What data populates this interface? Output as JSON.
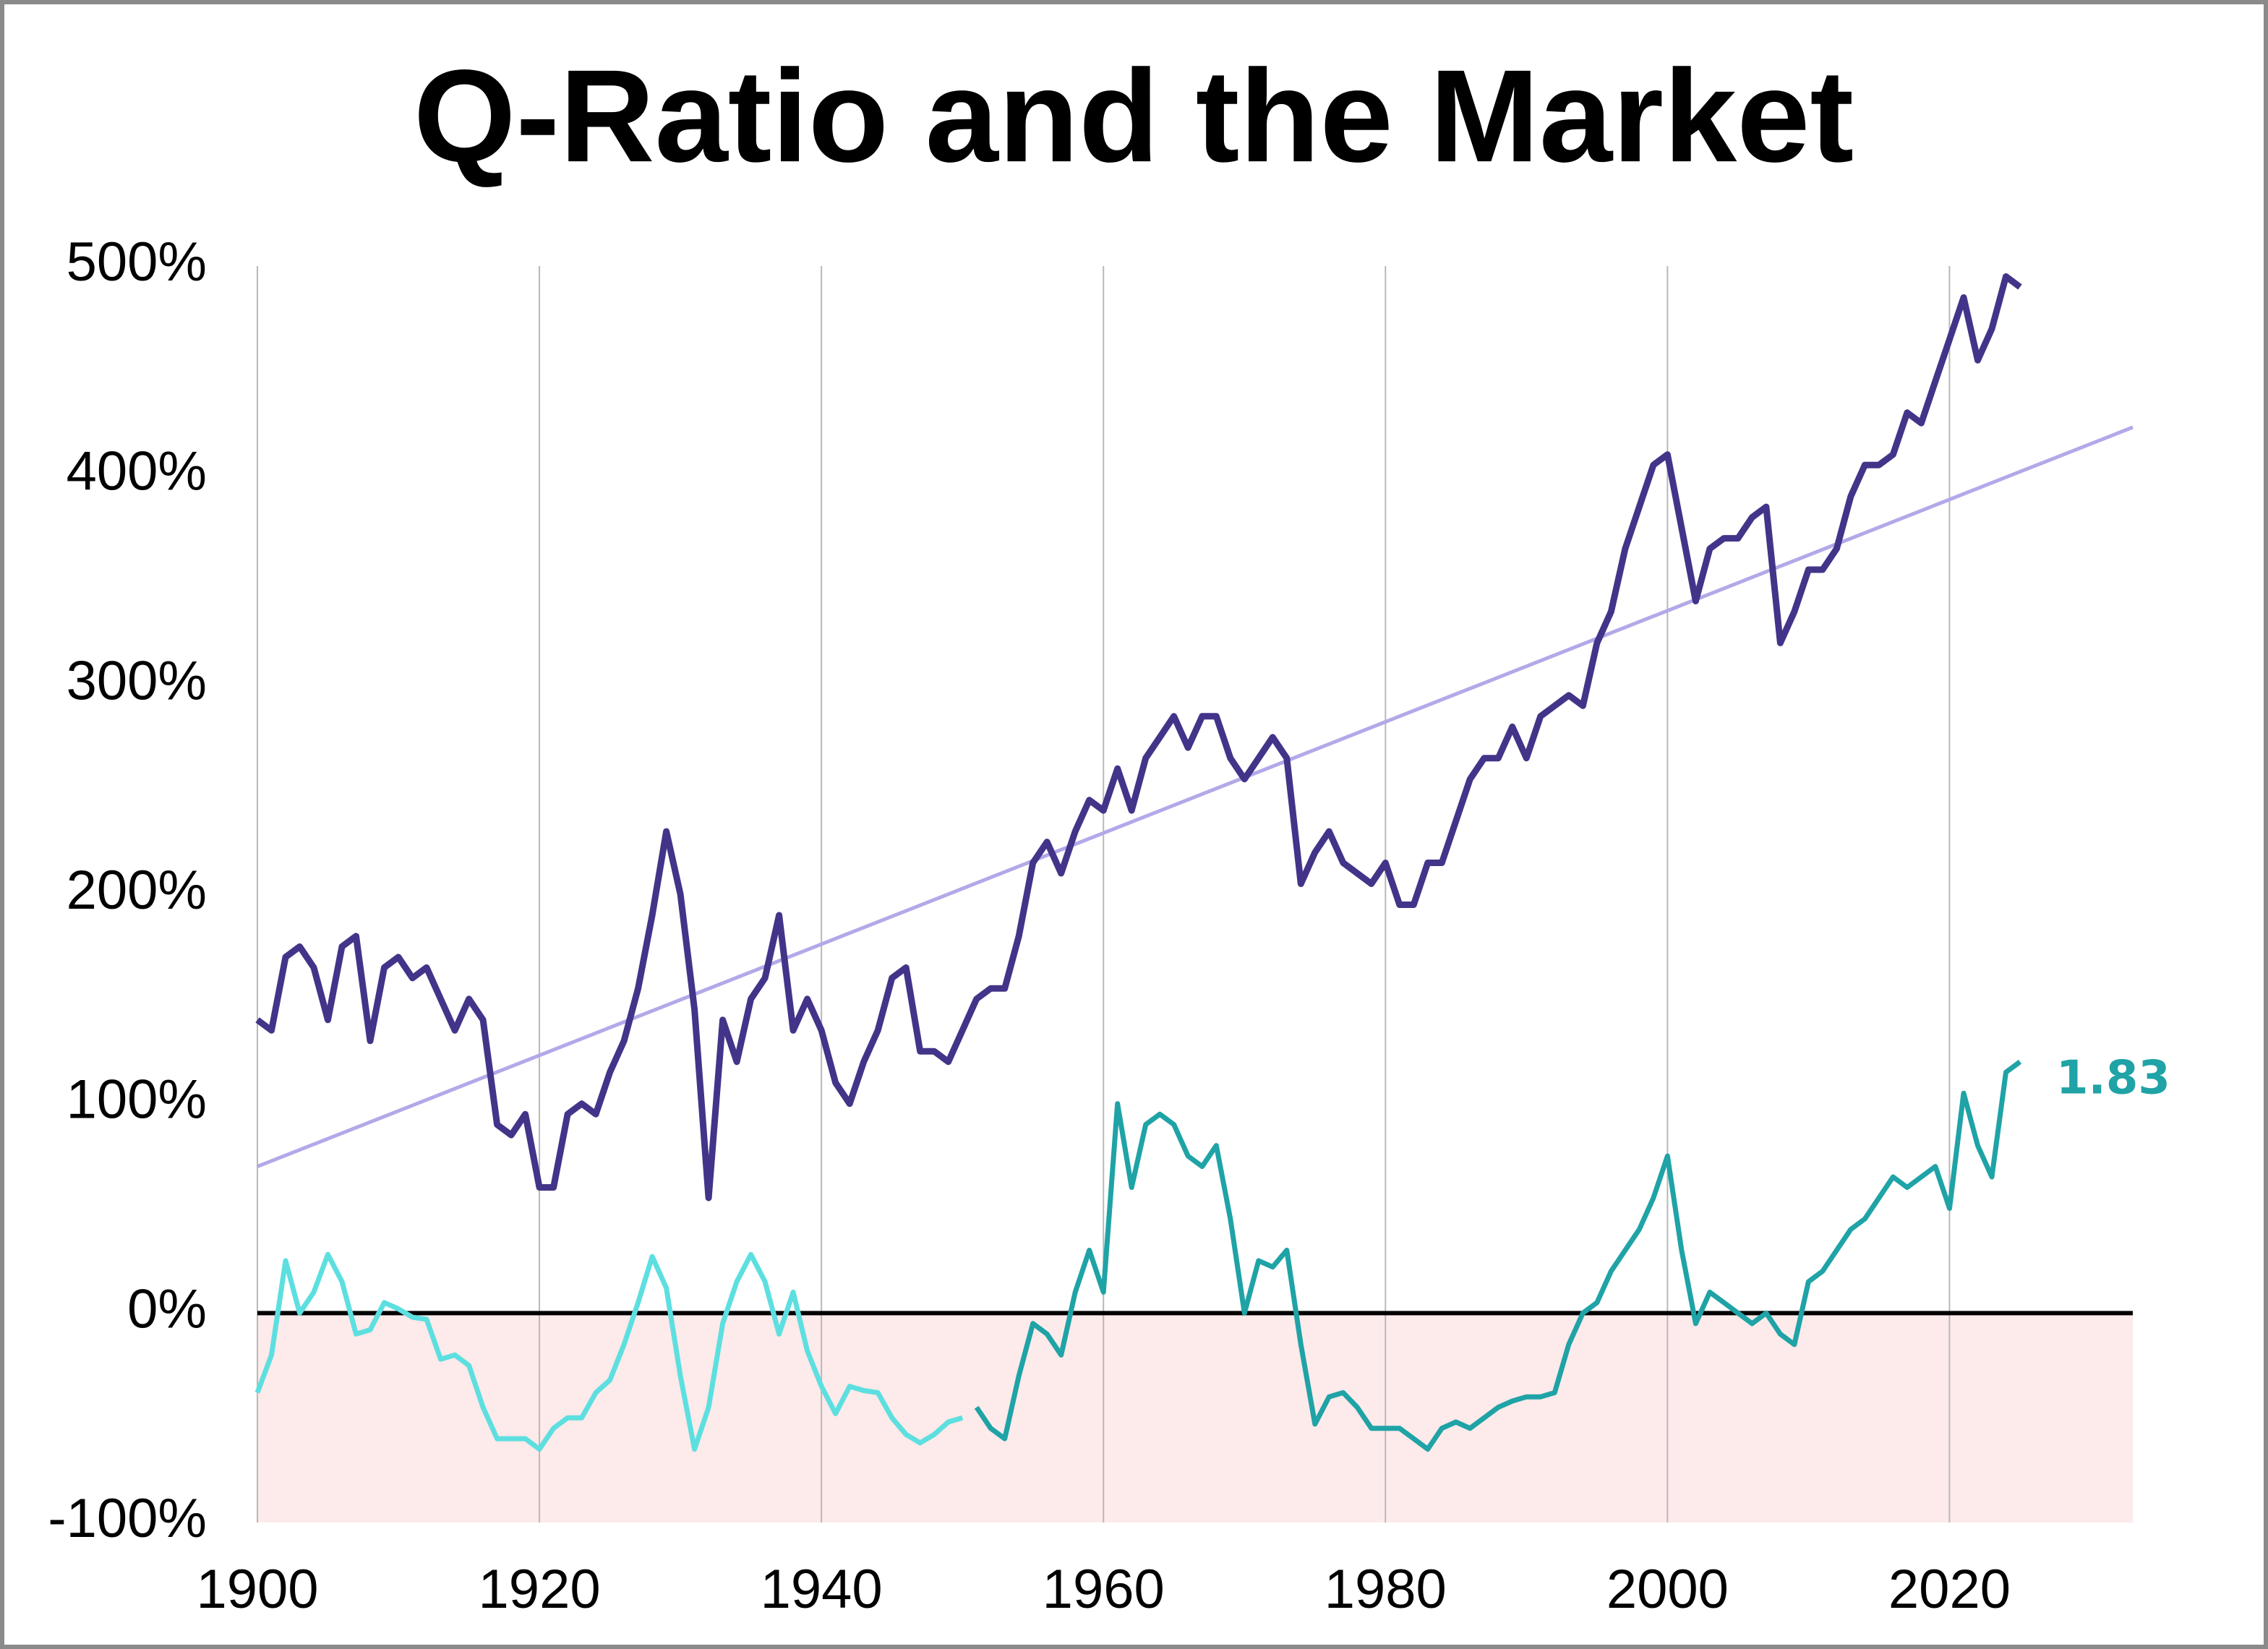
{
  "chart_data": {
    "type": "line",
    "title": "Q-Ratio and the Market",
    "xlim": [
      1900,
      2033
    ],
    "xticks": [
      1900,
      1920,
      1940,
      1960,
      1980,
      2000,
      2020
    ],
    "ylim": [
      -100,
      500
    ],
    "yticks": [
      {
        "value": -100,
        "label": "-100%"
      },
      {
        "value": 0,
        "label": "0%"
      },
      {
        "value": 100,
        "label": "100%"
      },
      {
        "value": 200,
        "label": "200%"
      },
      {
        "value": 300,
        "label": "300%"
      },
      {
        "value": 400,
        "label": "400%"
      },
      {
        "value": 500,
        "label": "500%"
      }
    ],
    "xgrid": true,
    "negative_fill": "#fdeaea",
    "series": [
      {
        "color": "#b3a8e8",
        "x": [
          1900,
          2033
        ],
        "values": [
          70,
          423
        ]
      },
      {
        "color": "#433489",
        "x": [
          1900,
          1901,
          1902,
          1903,
          1904,
          1905,
          1906,
          1907,
          1908,
          1909,
          1910,
          1911,
          1912,
          1913,
          1914,
          1915,
          1916,
          1917,
          1918,
          1919,
          1920,
          1921,
          1922,
          1923,
          1924,
          1925,
          1926,
          1927,
          1928,
          1929,
          1930,
          1931,
          1932,
          1933,
          1934,
          1935,
          1936,
          1937,
          1938,
          1939,
          1940,
          1941,
          1942,
          1943,
          1944,
          1945,
          1946,
          1947,
          1948,
          1949,
          1950,
          1951,
          1952,
          1953,
          1954,
          1955,
          1956,
          1957,
          1958,
          1959,
          1960,
          1961,
          1962,
          1963,
          1964,
          1965,
          1966,
          1967,
          1968,
          1969,
          1970,
          1971,
          1972,
          1973,
          1974,
          1975,
          1976,
          1977,
          1978,
          1979,
          1980,
          1981,
          1982,
          1983,
          1984,
          1985,
          1986,
          1987,
          1988,
          1989,
          1990,
          1991,
          1992,
          1993,
          1994,
          1995,
          1996,
          1997,
          1998,
          1999,
          2000,
          2001,
          2002,
          2003,
          2004,
          2005,
          2006,
          2007,
          2008,
          2009,
          2010,
          2011,
          2012,
          2013,
          2014,
          2015,
          2016,
          2017,
          2018,
          2019,
          2020,
          2021,
          2022,
          2023,
          2024,
          2025
        ],
        "values": [
          140,
          135,
          170,
          175,
          165,
          140,
          175,
          180,
          130,
          165,
          170,
          160,
          165,
          150,
          135,
          150,
          140,
          90,
          85,
          95,
          60,
          60,
          95,
          100,
          95,
          115,
          130,
          155,
          190,
          230,
          200,
          145,
          55,
          140,
          120,
          150,
          160,
          190,
          135,
          150,
          135,
          110,
          100,
          120,
          135,
          160,
          165,
          125,
          125,
          120,
          135,
          150,
          155,
          155,
          180,
          215,
          225,
          210,
          230,
          245,
          240,
          260,
          240,
          265,
          275,
          285,
          270,
          285,
          285,
          265,
          255,
          265,
          275,
          265,
          205,
          220,
          230,
          215,
          210,
          205,
          215,
          195,
          195,
          215,
          215,
          235,
          255,
          265,
          265,
          280,
          265,
          285,
          290,
          295,
          290,
          320,
          335,
          365,
          385,
          405,
          410,
          375,
          340,
          365,
          370,
          370,
          380,
          385,
          320,
          335,
          355,
          355,
          365,
          390,
          405,
          405,
          410,
          430,
          425,
          445,
          465,
          485,
          455,
          470,
          495,
          490
        ]
      },
      {
        "color": "#5ddfe0",
        "x": [
          1900,
          1901,
          1902,
          1903,
          1904,
          1905,
          1906,
          1907,
          1908,
          1909,
          1910,
          1911,
          1912,
          1913,
          1914,
          1915,
          1916,
          1917,
          1918,
          1919,
          1920,
          1921,
          1922,
          1923,
          1924,
          1925,
          1926,
          1927,
          1928,
          1929,
          1930,
          1931,
          1932,
          1933,
          1934,
          1935,
          1936,
          1937,
          1938,
          1939,
          1940,
          1941,
          1942,
          1943,
          1944,
          1945,
          1946,
          1947,
          1948,
          1949,
          1950
        ],
        "values": [
          -38,
          -20,
          25,
          0,
          10,
          28,
          15,
          -10,
          -8,
          5,
          2,
          -2,
          -3,
          -22,
          -20,
          -25,
          -45,
          -60,
          -60,
          -60,
          -65,
          -55,
          -50,
          -50,
          -38,
          -32,
          -15,
          5,
          27,
          12,
          -30,
          -65,
          -45,
          -5,
          15,
          28,
          15,
          -10,
          10,
          -18,
          -35,
          -48,
          -35,
          -37,
          -38,
          -50,
          -58,
          -62,
          -58,
          -52,
          -50
        ]
      },
      {
        "color": "#1fa3a6",
        "x": [
          1951,
          1952,
          1953,
          1954,
          1955,
          1956,
          1957,
          1958,
          1959,
          1960,
          1961,
          1962,
          1963,
          1964,
          1965,
          1966,
          1967,
          1968,
          1969,
          1970,
          1971,
          1972,
          1973,
          1974,
          1975,
          1976,
          1977,
          1978,
          1979,
          1980,
          1981,
          1982,
          1983,
          1984,
          1985,
          1986,
          1987,
          1988,
          1989,
          1990,
          1991,
          1992,
          1993,
          1994,
          1995,
          1996,
          1997,
          1998,
          1999,
          2000,
          2001,
          2002,
          2003,
          2004,
          2005,
          2006,
          2007,
          2008,
          2009,
          2010,
          2011,
          2012,
          2013,
          2014,
          2015,
          2016,
          2017,
          2018,
          2019,
          2020,
          2021,
          2022,
          2023,
          2024,
          2025
        ],
        "values": [
          -45,
          -55,
          -60,
          -30,
          -5,
          -10,
          -20,
          10,
          30,
          10,
          100,
          60,
          90,
          95,
          90,
          75,
          70,
          80,
          45,
          0,
          25,
          22,
          30,
          -15,
          -53,
          -40,
          -38,
          -45,
          -55,
          -55,
          -55,
          -60,
          -65,
          -55,
          -52,
          -55,
          -50,
          -45,
          -42,
          -40,
          -40,
          -38,
          -15,
          0,
          5,
          20,
          30,
          40,
          55,
          75,
          30,
          -5,
          10,
          5,
          0,
          -5,
          0,
          -10,
          -15,
          15,
          20,
          30,
          40,
          45,
          55,
          65,
          60,
          65,
          70,
          50,
          105,
          80,
          65,
          115,
          120
        ]
      }
    ],
    "annotations": [
      {
        "text": "1.83"
      }
    ]
  }
}
